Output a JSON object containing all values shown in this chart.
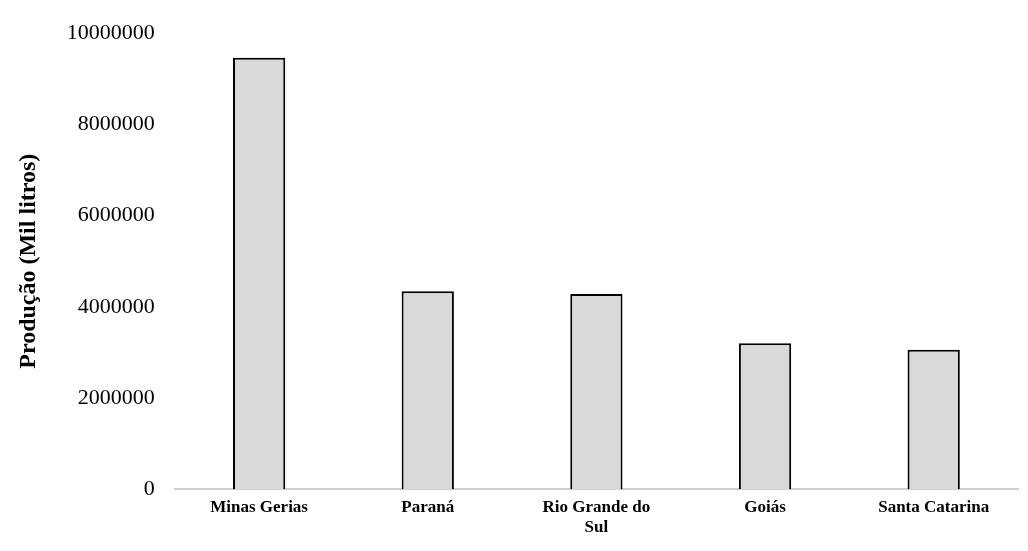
{
  "chart_data": {
    "type": "bar",
    "ylabel": "Produção (Mil litros)",
    "categories": [
      "Minas Gerias",
      "Paraná",
      "Rio Grande do Sul",
      "Goiás",
      "Santa Catarina"
    ],
    "values": [
      9460000,
      4340000,
      4280000,
      3200000,
      3060000
    ],
    "color": "#d9d9d9",
    "ylim": [
      0,
      10000000
    ],
    "yticks": [
      0,
      2000000,
      4000000,
      6000000,
      8000000,
      10000000
    ],
    "grid": false,
    "legend": false
  }
}
